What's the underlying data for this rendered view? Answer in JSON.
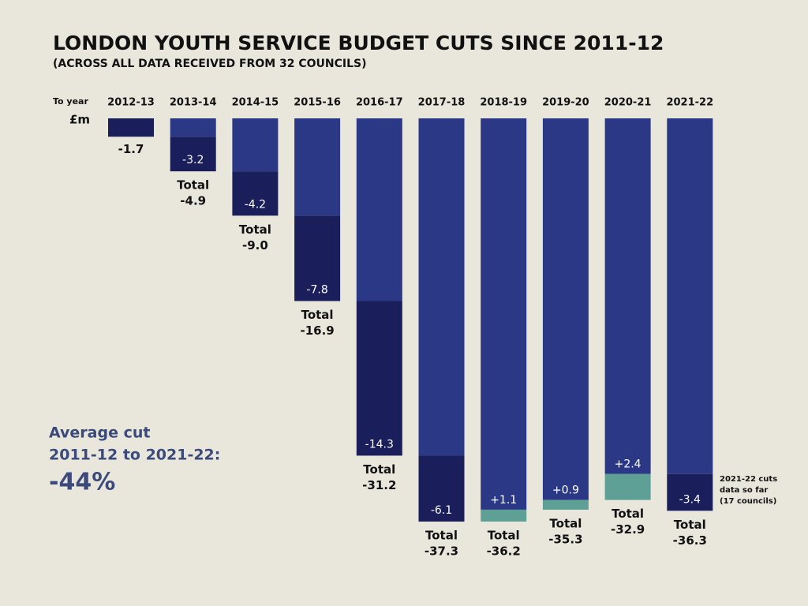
{
  "chart_data": {
    "type": "waterfall",
    "title": "LONDON YOUTH SERVICE BUDGET CUTS SINCE 2011-12",
    "subtitle": "(ACROSS ALL DATA RECEIVED FROM 32 COUNCILS)",
    "x_label": "To year",
    "unit_label": "£m",
    "categories": [
      "2012-13",
      "2013-14",
      "2014-15",
      "2015-16",
      "2016-17",
      "2017-18",
      "2018-19",
      "2019-20",
      "2020-21",
      "2021-22"
    ],
    "changes": {
      "values": [
        -1.7,
        -3.2,
        -4.2,
        -7.8,
        -14.3,
        -6.1,
        1.1,
        0.9,
        2.4,
        -3.4
      ],
      "value_labels": [
        "-1.7",
        "-3.2",
        "-4.2",
        "-7.8",
        "-14.3",
        "-6.1",
        "+1.1",
        "+0.9",
        "+2.4",
        "-3.4"
      ]
    },
    "totals": {
      "values": [
        null,
        -4.9,
        -9.0,
        -16.9,
        -31.2,
        -37.3,
        -36.2,
        -35.3,
        -32.9,
        -36.3
      ],
      "value_labels": [
        null,
        "-4.9",
        "-9.0",
        "-16.9",
        "-31.2",
        "-37.3",
        "-36.2",
        "-35.3",
        "-32.9",
        "-36.3"
      ]
    },
    "total_label": "Total",
    "colors": {
      "total": "#2b3886",
      "cut": "#1a1f5c",
      "gain": "#5e9f96"
    },
    "average": {
      "label_lines": [
        "Average cut",
        "2011-12 to 2021-22:"
      ],
      "value": -44,
      "value_label": "-44%"
    },
    "note_lines": [
      "2021-22 cuts",
      "data so far",
      "(17 councils)"
    ]
  }
}
